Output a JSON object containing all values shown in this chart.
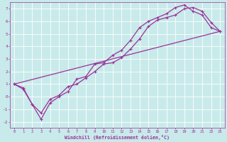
{
  "title": "",
  "xlabel": "Windchill (Refroidissement éolien,°C)",
  "bg_color": "#c8eaea",
  "grid_color": "#b0d0d0",
  "line_color": "#993399",
  "xlim": [
    -0.5,
    23.5
  ],
  "ylim": [
    -2.5,
    7.5
  ],
  "xticks": [
    0,
    1,
    2,
    3,
    4,
    5,
    6,
    7,
    8,
    9,
    10,
    11,
    12,
    13,
    14,
    15,
    16,
    17,
    18,
    19,
    20,
    21,
    22,
    23
  ],
  "yticks": [
    -2,
    -1,
    0,
    1,
    2,
    3,
    4,
    5,
    6,
    7
  ],
  "line1_x": [
    0,
    1,
    2,
    3,
    4,
    5,
    6,
    7,
    8,
    9,
    10,
    11,
    12,
    13,
    14,
    15,
    16,
    17,
    18,
    19,
    20,
    21,
    22,
    23
  ],
  "line1_y": [
    1.0,
    0.7,
    -0.6,
    -1.3,
    -0.2,
    0.1,
    0.8,
    1.0,
    1.5,
    2.0,
    2.6,
    2.7,
    3.1,
    3.8,
    4.6,
    5.6,
    6.1,
    6.3,
    6.5,
    7.0,
    7.1,
    6.8,
    5.9,
    5.2
  ],
  "line2_x": [
    0,
    1,
    2,
    3,
    4,
    5,
    6,
    7,
    8,
    9,
    10,
    11,
    12,
    13,
    14,
    15,
    16,
    17,
    18,
    19,
    20,
    21,
    22,
    23
  ],
  "line2_y": [
    1.0,
    0.6,
    -0.6,
    -1.8,
    -0.5,
    0.0,
    0.4,
    1.4,
    1.6,
    2.6,
    2.7,
    3.3,
    3.7,
    4.5,
    5.5,
    6.0,
    6.3,
    6.6,
    7.1,
    7.3,
    6.8,
    6.5,
    5.5,
    5.2
  ],
  "line3_x": [
    0,
    23
  ],
  "line3_y": [
    1.0,
    5.2
  ],
  "figsize": [
    3.2,
    2.0
  ],
  "dpi": 100
}
